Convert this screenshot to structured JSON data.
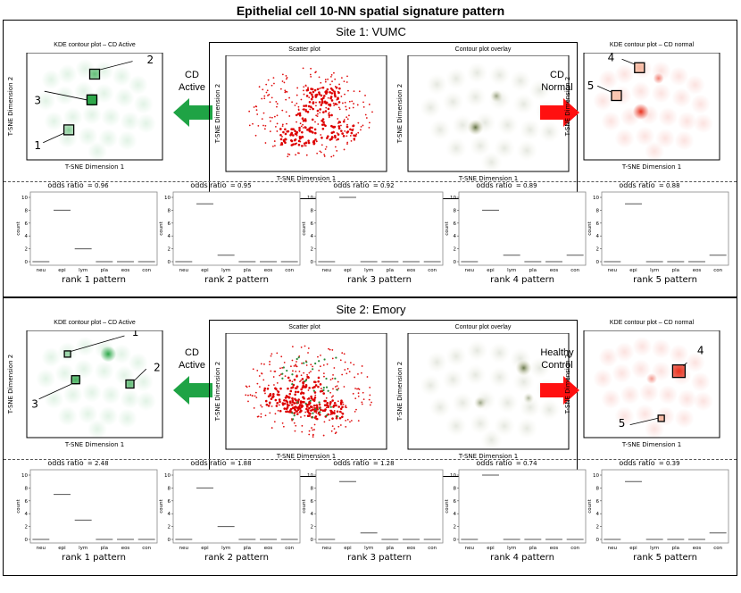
{
  "figure_title": "Epithelial cell 10-NN spatial signature pattern",
  "common": {
    "kde_active_title": "KDE contour plot – CD Active",
    "kde_normal_title": "KDE contour plot – CD normal",
    "scatter_title": "Scatter plot",
    "overlay_title": "Contour plot overlay",
    "xlabel": "T-SNE Dimension 1",
    "ylabel": "T-SNE Dimension 2",
    "odds_label": "odds ratio",
    "count_label": "count",
    "categories": [
      "neu",
      "epi",
      "lym",
      "pla",
      "eos",
      "con"
    ],
    "yticks": [
      "0",
      "2",
      "4",
      "6",
      "8",
      "10"
    ]
  },
  "sites": [
    {
      "title": "Site 1: VUMC",
      "left_arrow_label": [
        "CD",
        "Active"
      ],
      "right_arrow_label": [
        "CD",
        "Normal"
      ],
      "active_markers": [
        "1",
        "2",
        "3"
      ],
      "normal_markers": [
        "4",
        "5"
      ],
      "colors": {
        "active": "#2ea84a",
        "normal": "#e8321e",
        "left_arrow": "#1fa345",
        "right_arrow": "#ff1010"
      }
    },
    {
      "title": "Site 2: Emory",
      "left_arrow_label": [
        "CD",
        "Active"
      ],
      "right_arrow_label": [
        "Healthy",
        "Control"
      ],
      "active_markers": [
        "1",
        "2",
        "3"
      ],
      "normal_markers": [
        "4",
        "5"
      ],
      "colors": {
        "active": "#2ea84a",
        "normal": "#e8321e",
        "left_arrow": "#1fa345",
        "right_arrow": "#ff1010"
      }
    }
  ],
  "chart_data": [
    {
      "type": "bar",
      "site": "Site 1: VUMC",
      "title": "rank 1 pattern",
      "odds_ratio": "= 0.96",
      "categories": [
        "neu",
        "epi",
        "lym",
        "pla",
        "eos",
        "con"
      ],
      "values": [
        0,
        8,
        2,
        0,
        0,
        0
      ],
      "ylim": [
        0,
        10
      ],
      "ylabel": "count"
    },
    {
      "type": "bar",
      "site": "Site 1: VUMC",
      "title": "rank 2 pattern",
      "odds_ratio": "= 0.95",
      "categories": [
        "neu",
        "epi",
        "lym",
        "pla",
        "eos",
        "con"
      ],
      "values": [
        0,
        9,
        1,
        0,
        0,
        0
      ],
      "ylim": [
        0,
        10
      ],
      "ylabel": "count"
    },
    {
      "type": "bar",
      "site": "Site 1: VUMC",
      "title": "rank 3 pattern",
      "odds_ratio": "= 0.92",
      "categories": [
        "neu",
        "epi",
        "lym",
        "pla",
        "eos",
        "con"
      ],
      "values": [
        0,
        10,
        0,
        0,
        0,
        0
      ],
      "ylim": [
        0,
        10
      ],
      "ylabel": "count"
    },
    {
      "type": "bar",
      "site": "Site 1: VUMC",
      "title": "rank 4 pattern",
      "odds_ratio": "= 0.89",
      "categories": [
        "neu",
        "epi",
        "lym",
        "pla",
        "eos",
        "con"
      ],
      "values": [
        0,
        8,
        1,
        0,
        0,
        1
      ],
      "ylim": [
        0,
        10
      ],
      "ylabel": "count"
    },
    {
      "type": "bar",
      "site": "Site 1: VUMC",
      "title": "rank 5 pattern",
      "odds_ratio": "= 0.88",
      "categories": [
        "neu",
        "epi",
        "lym",
        "pla",
        "eos",
        "con"
      ],
      "values": [
        0,
        9,
        0,
        0,
        0,
        1
      ],
      "ylim": [
        0,
        10
      ],
      "ylabel": "count"
    },
    {
      "type": "bar",
      "site": "Site 2: Emory",
      "title": "rank 1 pattern",
      "odds_ratio": "= 2.48",
      "categories": [
        "neu",
        "epi",
        "lym",
        "pla",
        "eos",
        "con"
      ],
      "values": [
        0,
        7,
        3,
        0,
        0,
        0
      ],
      "ylim": [
        0,
        10
      ],
      "ylabel": "count"
    },
    {
      "type": "bar",
      "site": "Site 2: Emory",
      "title": "rank 2 pattern",
      "odds_ratio": "= 1.88",
      "categories": [
        "neu",
        "epi",
        "lym",
        "pla",
        "eos",
        "con"
      ],
      "values": [
        0,
        8,
        2,
        0,
        0,
        0
      ],
      "ylim": [
        0,
        10
      ],
      "ylabel": "count"
    },
    {
      "type": "bar",
      "site": "Site 2: Emory",
      "title": "rank 3 pattern",
      "odds_ratio": "= 1.28",
      "categories": [
        "neu",
        "epi",
        "lym",
        "pla",
        "eos",
        "con"
      ],
      "values": [
        0,
        9,
        1,
        0,
        0,
        0
      ],
      "ylim": [
        0,
        10
      ],
      "ylabel": "count"
    },
    {
      "type": "bar",
      "site": "Site 2: Emory",
      "title": "rank 4 pattern",
      "odds_ratio": "= 0.74",
      "categories": [
        "neu",
        "epi",
        "lym",
        "pla",
        "eos",
        "con"
      ],
      "values": [
        0,
        10,
        0,
        0,
        0,
        0
      ],
      "ylim": [
        0,
        10
      ],
      "ylabel": "count"
    },
    {
      "type": "bar",
      "site": "Site 2: Emory",
      "title": "rank 5 pattern",
      "odds_ratio": "= 0.39",
      "categories": [
        "neu",
        "epi",
        "lym",
        "pla",
        "eos",
        "con"
      ],
      "values": [
        0,
        9,
        0,
        0,
        0,
        1
      ],
      "ylim": [
        0,
        10
      ],
      "ylabel": "count"
    }
  ]
}
